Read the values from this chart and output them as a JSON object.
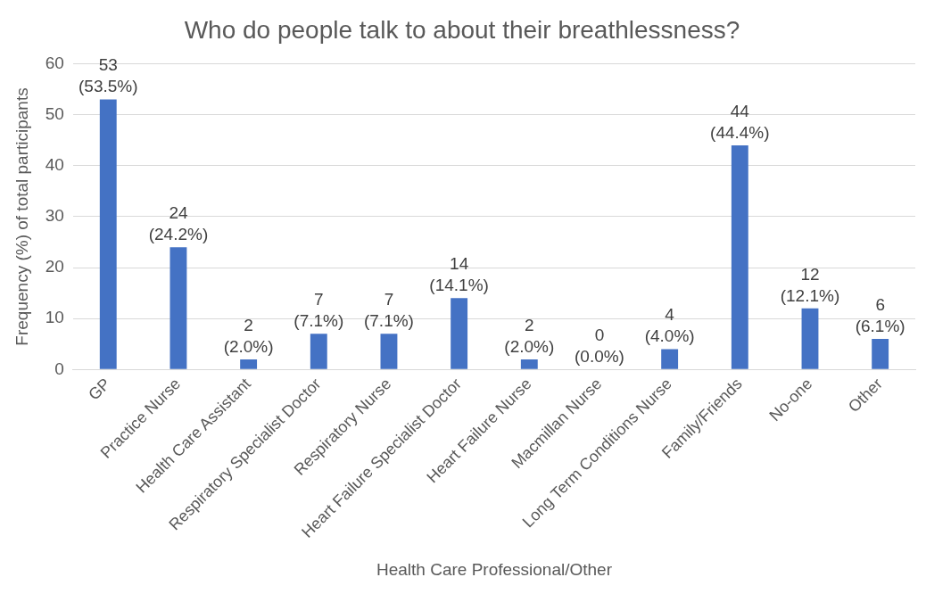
{
  "chart_data": {
    "type": "bar",
    "title": "Who do people talk to about their breathlessness?",
    "xlabel": "Health Care Professional/Other",
    "ylabel": "Frequency (%) of total participants",
    "categories": [
      "GP",
      "Practice Nurse",
      "Health Care Assistant",
      "Respiratory Specialist Doctor",
      "Respiratory Nurse",
      "Heart Failure Specialist Doctor",
      "Heart Failure Nurse",
      "Macmillan Nurse",
      "Long Term Conditions Nurse",
      "Family/Friends",
      "No-one",
      "Other"
    ],
    "values": [
      53,
      24,
      2,
      7,
      7,
      14,
      2,
      0,
      4,
      44,
      12,
      6
    ],
    "value_labels": [
      "53 (53.5%)",
      "24 (24.2%)",
      "2 (2.0%)",
      "7 (7.1%)",
      "7 (7.1%)",
      "14 (14.1%)",
      "2 (2.0%)",
      "0 (0.0%)",
      "4 (4.0%)",
      "44 (44.4%)",
      "12 (12.1%)",
      "6 (6.1%)"
    ],
    "color": "#4472c4",
    "ylim": [
      0,
      60
    ],
    "yticks": [
      0,
      10,
      20,
      30,
      40,
      50,
      60
    ],
    "grid": "y",
    "legend": false
  }
}
